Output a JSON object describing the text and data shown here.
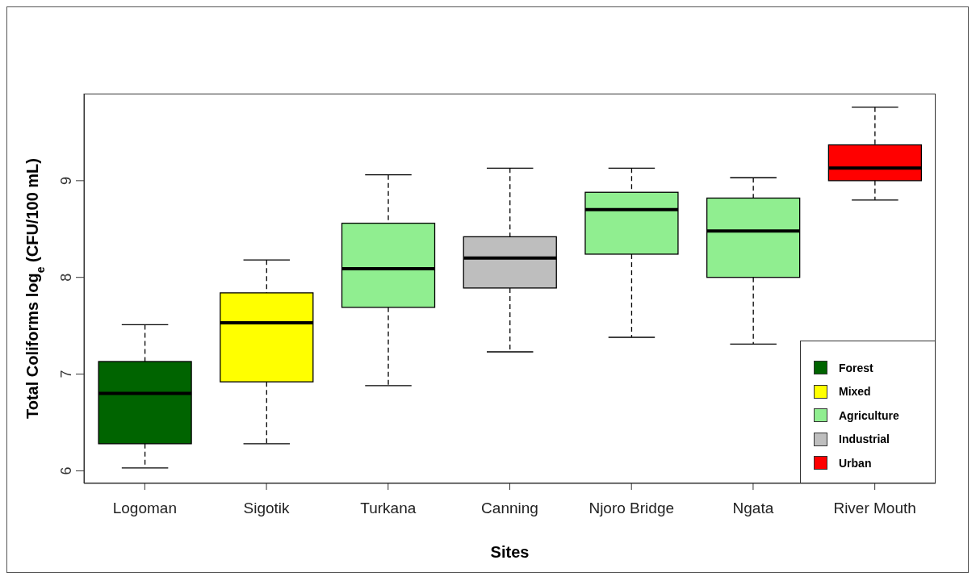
{
  "chart_data": {
    "type": "box",
    "xlabel": "Sites",
    "ylabel": "Total Coliforms log$_{e}$ (CFU/100 mL)",
    "categories": [
      "Logoman",
      "Sigotik",
      "Turkana",
      "Canning",
      "Njoro Bridge",
      "Ngata",
      "River Mouth"
    ],
    "ylim": [
      5.87,
      9.9
    ],
    "yticks": [
      6,
      7,
      8,
      9
    ],
    "legend": "bottom right",
    "series": [
      {
        "name": "Forest",
        "color": "#006400",
        "boxes": [
          {
            "low": 6.03,
            "q1": 6.28,
            "median": 6.8,
            "q3": 7.13,
            "high": 7.51
          },
          null,
          null,
          null,
          null,
          null,
          null
        ]
      },
      {
        "name": "Mixed",
        "color": "#ffff00",
        "boxes": [
          null,
          {
            "low": 6.28,
            "q1": 6.92,
            "median": 7.53,
            "q3": 7.84,
            "high": 8.18
          },
          null,
          null,
          null,
          null,
          null
        ]
      },
      {
        "name": "Agriculture",
        "color": "#90ee90",
        "boxes": [
          null,
          null,
          {
            "low": 6.88,
            "q1": 7.69,
            "median": 8.09,
            "q3": 8.56,
            "high": 9.06
          },
          null,
          {
            "low": 7.38,
            "q1": 8.24,
            "median": 8.7,
            "q3": 8.88,
            "high": 9.13
          },
          {
            "low": 7.31,
            "q1": 8.0,
            "median": 8.48,
            "q3": 8.82,
            "high": 9.03
          },
          null
        ]
      },
      {
        "name": "Industrial",
        "color": "#bebebe",
        "boxes": [
          null,
          null,
          null,
          {
            "low": 7.23,
            "q1": 7.89,
            "median": 8.2,
            "q3": 8.42,
            "high": 9.13
          },
          null,
          null,
          null
        ]
      },
      {
        "name": "Urban",
        "color": "#ff0000",
        "boxes": [
          null,
          null,
          null,
          null,
          null,
          null,
          {
            "low": 8.8,
            "q1": 9.0,
            "median": 9.13,
            "q3": 9.37,
            "high": 9.76
          }
        ]
      }
    ]
  }
}
